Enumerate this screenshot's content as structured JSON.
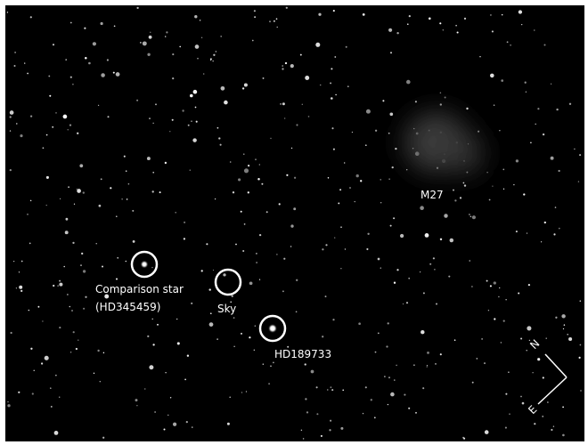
{
  "annotations": {
    "comparison": {
      "label": "Comparison star",
      "id": "(HD345459)"
    },
    "sky": "Sky",
    "target": "HD189733",
    "nebula": "M27"
  },
  "compass": {
    "north": "N",
    "east": "E"
  }
}
